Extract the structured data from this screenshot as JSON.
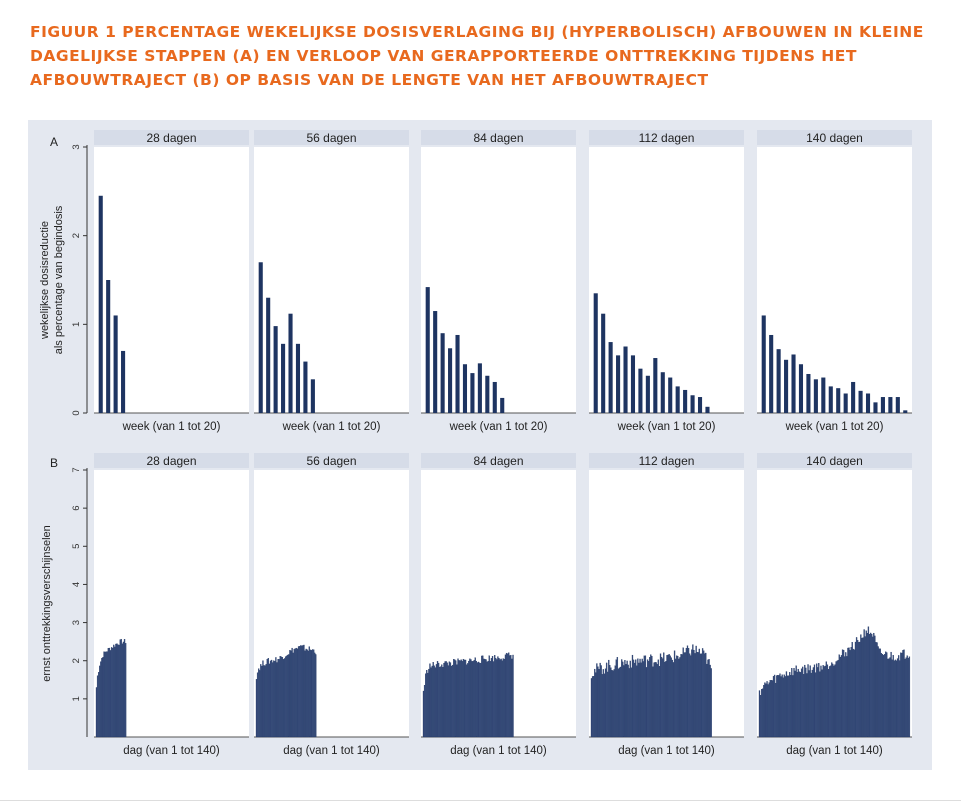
{
  "title": "Figuur 1 Percentage wekelijkse dosisverlaging bij (hyperbolisch) afbouwen in kleine dagelijkse stappen (A) en verloop van gerapporteerde onttrekking tijdens het afbouwtraject (B) op basis van de lengte van het afbouwtraject",
  "colors": {
    "bar": "#1e3461",
    "panel_bg": "#e4e8f0",
    "strip_bg": "#d6dce8",
    "title": "#e8691e"
  },
  "chart_data": [
    {
      "panel": "A",
      "type": "bar",
      "ylabel": [
        "wekelijkse dosisreductie",
        "als percentage van begindosis"
      ],
      "xlabel": "week (van 1 tot 20)",
      "ylim": [
        0,
        3
      ],
      "yticks": [
        0,
        1,
        2,
        3
      ],
      "x_range": [
        1,
        20
      ],
      "grid": false,
      "facets": [
        {
          "label": "28 dagen",
          "x": [
            1,
            2,
            3,
            4
          ],
          "values": [
            2.45,
            1.5,
            1.1,
            0.7
          ]
        },
        {
          "label": "56 dagen",
          "x": [
            1,
            2,
            3,
            4,
            5,
            6,
            7,
            8
          ],
          "values": [
            1.7,
            1.3,
            0.98,
            0.78,
            1.12,
            0.78,
            0.58,
            0.38
          ]
        },
        {
          "label": "84 dagen",
          "x": [
            1,
            2,
            3,
            4,
            5,
            6,
            7,
            8,
            9,
            10,
            11,
            12
          ],
          "values": [
            1.42,
            1.15,
            0.9,
            0.73,
            0.88,
            0.55,
            0.45,
            0.56,
            0.42,
            0.35,
            0.17,
            0
          ]
        },
        {
          "label": "112 dagen",
          "x": [
            1,
            2,
            3,
            4,
            5,
            6,
            7,
            8,
            9,
            10,
            11,
            12,
            13,
            14,
            15,
            16
          ],
          "values": [
            1.35,
            1.12,
            0.8,
            0.65,
            0.75,
            0.65,
            0.5,
            0.42,
            0.62,
            0.46,
            0.4,
            0.3,
            0.26,
            0.2,
            0.18,
            0.07
          ]
        },
        {
          "label": "140 dagen",
          "x": [
            1,
            2,
            3,
            4,
            5,
            6,
            7,
            8,
            9,
            10,
            11,
            12,
            13,
            14,
            15,
            16,
            17,
            18,
            19,
            20
          ],
          "values": [
            1.1,
            0.88,
            0.72,
            0.6,
            0.66,
            0.55,
            0.44,
            0.38,
            0.4,
            0.3,
            0.28,
            0.22,
            0.35,
            0.25,
            0.22,
            0.12,
            0.18,
            0.18,
            0.18,
            0.03
          ]
        }
      ]
    },
    {
      "panel": "B",
      "type": "bar",
      "ylabel": "ernst onttrekkingsverschijnselen",
      "xlabel": "dag (van 1 tot 140)",
      "ylim": [
        0,
        7
      ],
      "yticks": [
        1,
        2,
        3,
        4,
        5,
        6,
        7
      ],
      "x_range": [
        1,
        140
      ],
      "grid": false,
      "facets": [
        {
          "label": "28 dagen",
          "days": 28,
          "profile": [
            [
              1,
              1.3
            ],
            [
              2,
              1.6
            ],
            [
              4,
              1.9
            ],
            [
              7,
              2.15
            ],
            [
              10,
              2.25
            ],
            [
              15,
              2.35
            ],
            [
              20,
              2.45
            ],
            [
              24,
              2.5
            ],
            [
              28,
              2.5
            ]
          ],
          "noise": 0.07
        },
        {
          "label": "56 dagen",
          "days": 56,
          "profile": [
            [
              1,
              1.6
            ],
            [
              3,
              1.8
            ],
            [
              8,
              1.95
            ],
            [
              15,
              2.0
            ],
            [
              22,
              2.05
            ],
            [
              30,
              2.2
            ],
            [
              36,
              2.3
            ],
            [
              42,
              2.35
            ],
            [
              50,
              2.3
            ],
            [
              56,
              2.25
            ]
          ],
          "noise": 0.09
        },
        {
          "label": "84 dagen",
          "days": 84,
          "profile": [
            [
              1,
              1.2
            ],
            [
              3,
              1.6
            ],
            [
              6,
              1.85
            ],
            [
              15,
              1.9
            ],
            [
              30,
              1.95
            ],
            [
              45,
              2.0
            ],
            [
              60,
              2.05
            ],
            [
              75,
              2.1
            ],
            [
              84,
              2.15
            ]
          ],
          "noise": 0.1
        },
        {
          "label": "112 dagen",
          "days": 112,
          "profile": [
            [
              1,
              1.7
            ],
            [
              10,
              1.8
            ],
            [
              30,
              1.95
            ],
            [
              50,
              2.0
            ],
            [
              70,
              2.05
            ],
            [
              85,
              2.15
            ],
            [
              95,
              2.3
            ],
            [
              103,
              2.2
            ],
            [
              108,
              2.05
            ],
            [
              112,
              1.75
            ]
          ],
          "noise": 0.18
        },
        {
          "label": "140 dagen",
          "days": 140,
          "profile": [
            [
              1,
              1.2
            ],
            [
              8,
              1.4
            ],
            [
              20,
              1.6
            ],
            [
              35,
              1.75
            ],
            [
              50,
              1.8
            ],
            [
              65,
              1.9
            ],
            [
              80,
              2.2
            ],
            [
              92,
              2.5
            ],
            [
              100,
              2.8
            ],
            [
              106,
              2.7
            ],
            [
              112,
              2.2
            ],
            [
              125,
              2.1
            ],
            [
              140,
              2.2
            ]
          ],
          "noise": 0.14
        }
      ]
    }
  ]
}
